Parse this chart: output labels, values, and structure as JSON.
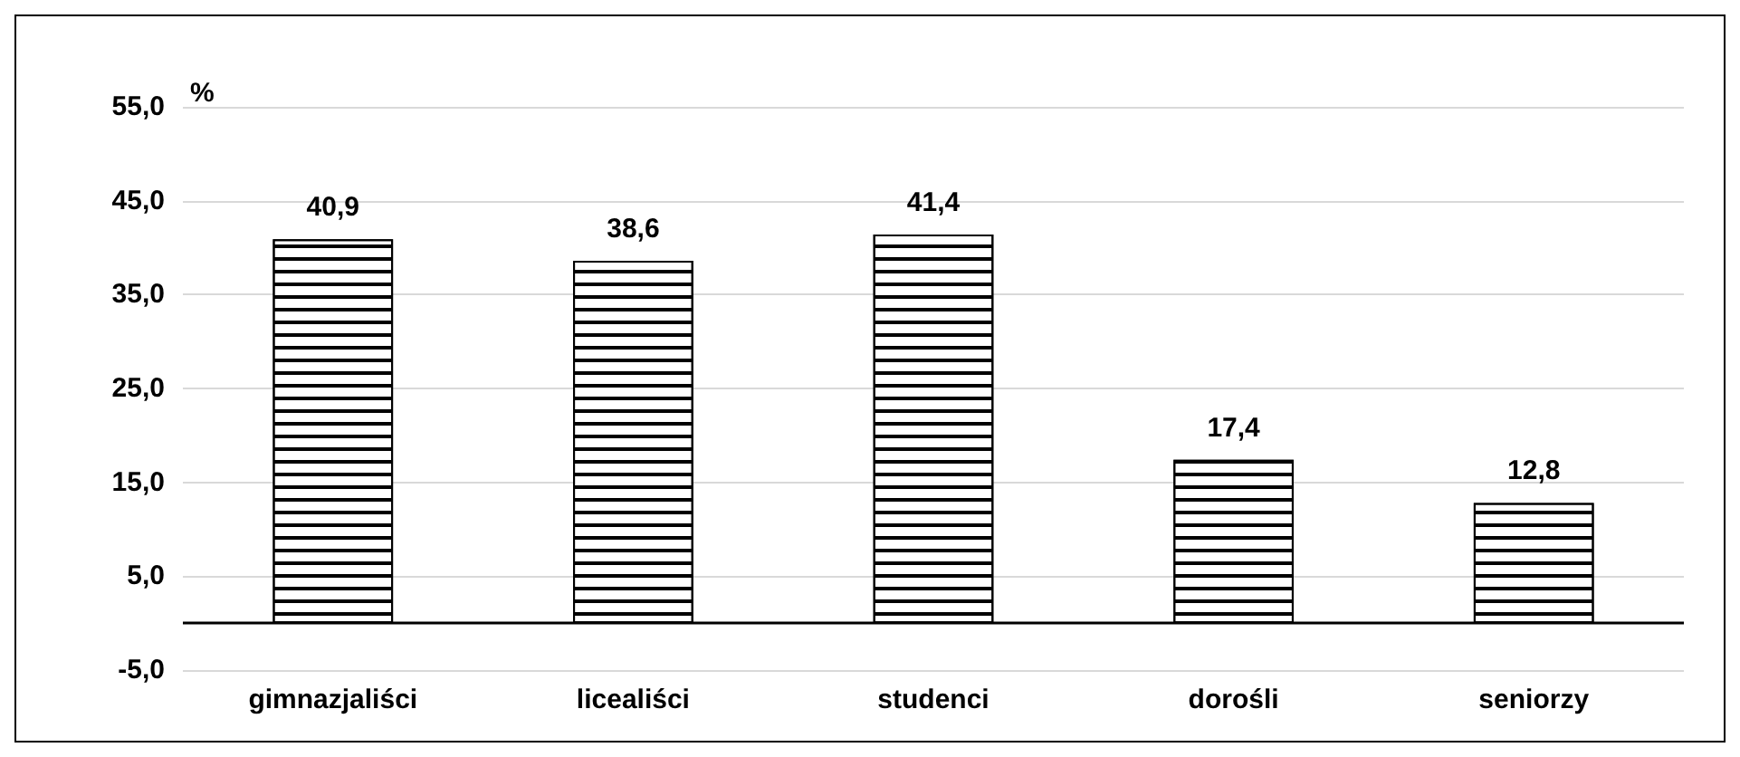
{
  "chart_data": {
    "type": "bar",
    "ylabel": "%",
    "categories": [
      "gimnazjaliści",
      "licealiści",
      "studenci",
      "dorośli",
      "seniorzy"
    ],
    "values": [
      40.9,
      38.6,
      41.4,
      17.4,
      12.8
    ],
    "value_labels": [
      "40,9",
      "38,6",
      "41,4",
      "17,4",
      "12,8"
    ],
    "color": "#000000",
    "ylim": [
      -5,
      55
    ],
    "yticks": [
      {
        "value": -5,
        "label": "-5,0"
      },
      {
        "value": 5,
        "label": "5,0"
      },
      {
        "value": 15,
        "label": "15,0"
      },
      {
        "value": 25,
        "label": "25,0"
      },
      {
        "value": 35,
        "label": "35,0"
      },
      {
        "value": 45,
        "label": "45,0"
      },
      {
        "value": 55,
        "label": "55,0"
      }
    ],
    "ref_lines": [
      {
        "axis": "y",
        "value": 0,
        "color": "#000000"
      }
    ],
    "grid": true
  }
}
